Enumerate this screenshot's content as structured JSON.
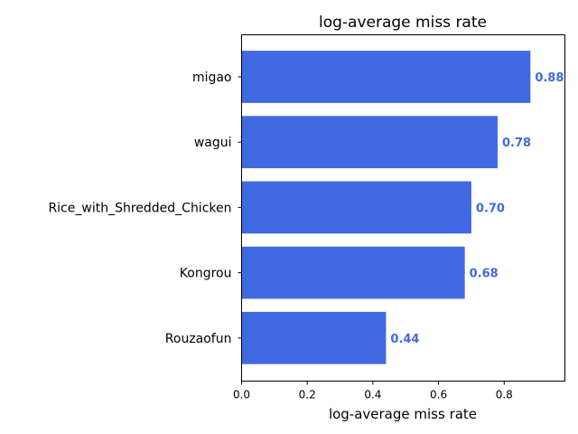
{
  "chart_data": {
    "type": "bar",
    "orientation": "horizontal",
    "title": "log-average miss rate",
    "xlabel": "log-average miss rate",
    "ylabel": "",
    "categories": [
      "migao",
      "wagui",
      "Rice_with_Shredded_Chicken",
      "Kongrou",
      "Rouzaofun"
    ],
    "values": [
      0.88,
      0.78,
      0.7,
      0.68,
      0.44
    ],
    "value_labels": [
      "0.88",
      "0.78",
      "0.70",
      "0.68",
      "0.44"
    ],
    "xlim": [
      0,
      0.985
    ],
    "xticks": [
      0.0,
      0.2,
      0.4,
      0.6,
      0.8
    ],
    "xtick_labels": [
      "0.0",
      "0.2",
      "0.4",
      "0.6",
      "0.8"
    ],
    "bar_color": "#4169E1",
    "label_color": "#4169E1",
    "grid": false,
    "legend": "none"
  }
}
